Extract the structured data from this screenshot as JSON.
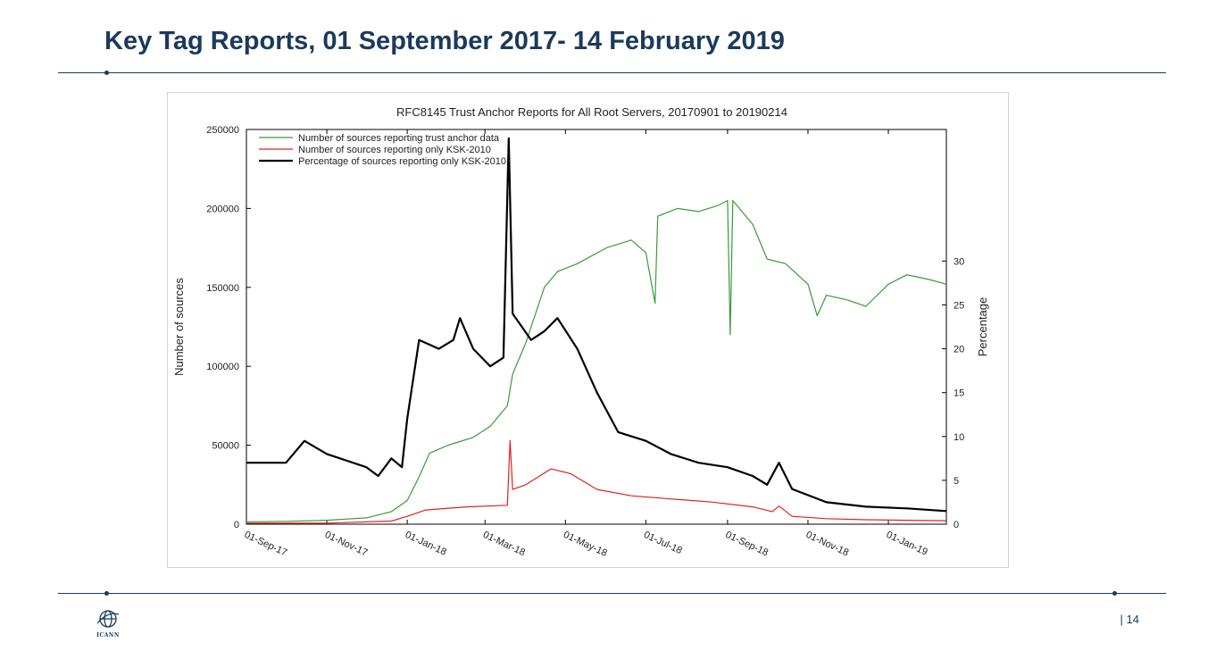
{
  "slide": {
    "title": "Key Tag Reports, 01 September 2017- 14 February 2019",
    "page_number": "| 14",
    "logo_text": "ICANN"
  },
  "colors": {
    "title": "#1b3a5c",
    "rule": "#1b3a5c",
    "trust_anchor": "#3a9a3a",
    "ksk2010_only": "#e02020",
    "percentage": "#000000"
  },
  "chart_data": {
    "type": "line",
    "title": "RFC8145 Trust Anchor Reports for All Root Servers, 20170901 to 20190214",
    "ylabel": "Number of sources",
    "y2label": "Percentage",
    "ylim": [
      0,
      250000
    ],
    "y2lim": [
      0,
      45
    ],
    "y_ticks": [
      "0",
      "50000",
      "100000",
      "150000",
      "200000",
      "250000"
    ],
    "y2_ticks": [
      "0",
      "5",
      "10",
      "15",
      "20",
      "25",
      "30"
    ],
    "x_ticks": [
      "01-Sep-17",
      "01-Nov-17",
      "01-Jan-18",
      "01-Mar-18",
      "01-May-18",
      "01-Jul-18",
      "01-Sep-18",
      "01-Nov-18",
      "01-Jan-19"
    ],
    "x_tick_dates": [
      "2017-09-01",
      "2017-11-01",
      "2018-01-01",
      "2018-03-01",
      "2018-05-01",
      "2018-07-01",
      "2018-09-01",
      "2018-11-01",
      "2019-01-01"
    ],
    "xlim": [
      "2017-09-01",
      "2019-02-14"
    ],
    "legend_position": "top-left",
    "series": [
      {
        "name": "Number of sources reporting trust anchor data",
        "axis": "left",
        "color": "#3a9a3a",
        "points": [
          [
            "2017-09-01",
            1500
          ],
          [
            "2017-10-01",
            1800
          ],
          [
            "2017-11-01",
            2500
          ],
          [
            "2017-12-01",
            4000
          ],
          [
            "2017-12-20",
            8000
          ],
          [
            "2018-01-01",
            15000
          ],
          [
            "2018-01-10",
            30000
          ],
          [
            "2018-01-18",
            45000
          ],
          [
            "2018-02-01",
            50000
          ],
          [
            "2018-02-20",
            55000
          ],
          [
            "2018-03-05",
            62000
          ],
          [
            "2018-03-18",
            75000
          ],
          [
            "2018-03-22",
            95000
          ],
          [
            "2018-04-01",
            115000
          ],
          [
            "2018-04-15",
            150000
          ],
          [
            "2018-04-25",
            160000
          ],
          [
            "2018-05-10",
            165000
          ],
          [
            "2018-06-01",
            175000
          ],
          [
            "2018-06-20",
            180000
          ],
          [
            "2018-07-01",
            172000
          ],
          [
            "2018-07-08",
            140000
          ],
          [
            "2018-07-10",
            195000
          ],
          [
            "2018-07-25",
            200000
          ],
          [
            "2018-08-10",
            198000
          ],
          [
            "2018-08-25",
            202000
          ],
          [
            "2018-09-01",
            205000
          ],
          [
            "2018-09-03",
            120000
          ],
          [
            "2018-09-05",
            205000
          ],
          [
            "2018-09-20",
            190000
          ],
          [
            "2018-10-01",
            168000
          ],
          [
            "2018-10-15",
            165000
          ],
          [
            "2018-11-01",
            152000
          ],
          [
            "2018-11-08",
            132000
          ],
          [
            "2018-11-15",
            145000
          ],
          [
            "2018-12-01",
            142000
          ],
          [
            "2018-12-15",
            138000
          ],
          [
            "2019-01-01",
            152000
          ],
          [
            "2019-01-15",
            158000
          ],
          [
            "2019-02-01",
            155000
          ],
          [
            "2019-02-14",
            152000
          ]
        ]
      },
      {
        "name": "Number of sources reporting only KSK-2010",
        "axis": "left",
        "color": "#e02020",
        "points": [
          [
            "2017-09-01",
            600
          ],
          [
            "2017-11-01",
            700
          ],
          [
            "2017-12-20",
            2000
          ],
          [
            "2018-01-01",
            5000
          ],
          [
            "2018-01-15",
            9000
          ],
          [
            "2018-02-15",
            11000
          ],
          [
            "2018-03-18",
            12000
          ],
          [
            "2018-03-20",
            53000
          ],
          [
            "2018-03-22",
            22000
          ],
          [
            "2018-04-01",
            25000
          ],
          [
            "2018-04-20",
            35000
          ],
          [
            "2018-05-05",
            32000
          ],
          [
            "2018-05-25",
            22000
          ],
          [
            "2018-06-20",
            18000
          ],
          [
            "2018-07-20",
            16000
          ],
          [
            "2018-08-20",
            14000
          ],
          [
            "2018-09-20",
            11000
          ],
          [
            "2018-10-05",
            8000
          ],
          [
            "2018-10-10",
            11500
          ],
          [
            "2018-10-20",
            5000
          ],
          [
            "2018-11-15",
            3500
          ],
          [
            "2018-12-15",
            2800
          ],
          [
            "2019-01-15",
            2500
          ],
          [
            "2019-02-14",
            2200
          ]
        ]
      },
      {
        "name": "Percentage of sources reporting only KSK-2010",
        "axis": "right",
        "color": "#000000",
        "points": [
          [
            "2017-09-01",
            7
          ],
          [
            "2017-10-01",
            7
          ],
          [
            "2017-10-15",
            9.5
          ],
          [
            "2017-11-01",
            8
          ],
          [
            "2017-12-01",
            6.5
          ],
          [
            "2017-12-10",
            5.5
          ],
          [
            "2017-12-20",
            7.5
          ],
          [
            "2017-12-28",
            6.5
          ],
          [
            "2018-01-01",
            12
          ],
          [
            "2018-01-10",
            21
          ],
          [
            "2018-01-25",
            20
          ],
          [
            "2018-02-05",
            21
          ],
          [
            "2018-02-10",
            23.5
          ],
          [
            "2018-02-20",
            20
          ],
          [
            "2018-03-05",
            18
          ],
          [
            "2018-03-15",
            19
          ],
          [
            "2018-03-19",
            44
          ],
          [
            "2018-03-22",
            24
          ],
          [
            "2018-04-05",
            21
          ],
          [
            "2018-04-15",
            22
          ],
          [
            "2018-04-25",
            23.5
          ],
          [
            "2018-05-10",
            20
          ],
          [
            "2018-05-25",
            15
          ],
          [
            "2018-06-10",
            10.5
          ],
          [
            "2018-07-01",
            9.5
          ],
          [
            "2018-07-20",
            8
          ],
          [
            "2018-08-10",
            7
          ],
          [
            "2018-09-01",
            6.5
          ],
          [
            "2018-09-20",
            5.5
          ],
          [
            "2018-10-01",
            4.5
          ],
          [
            "2018-10-10",
            7
          ],
          [
            "2018-10-20",
            4
          ],
          [
            "2018-11-15",
            2.5
          ],
          [
            "2018-12-15",
            2
          ],
          [
            "2019-01-15",
            1.8
          ],
          [
            "2019-02-14",
            1.5
          ]
        ]
      }
    ]
  }
}
